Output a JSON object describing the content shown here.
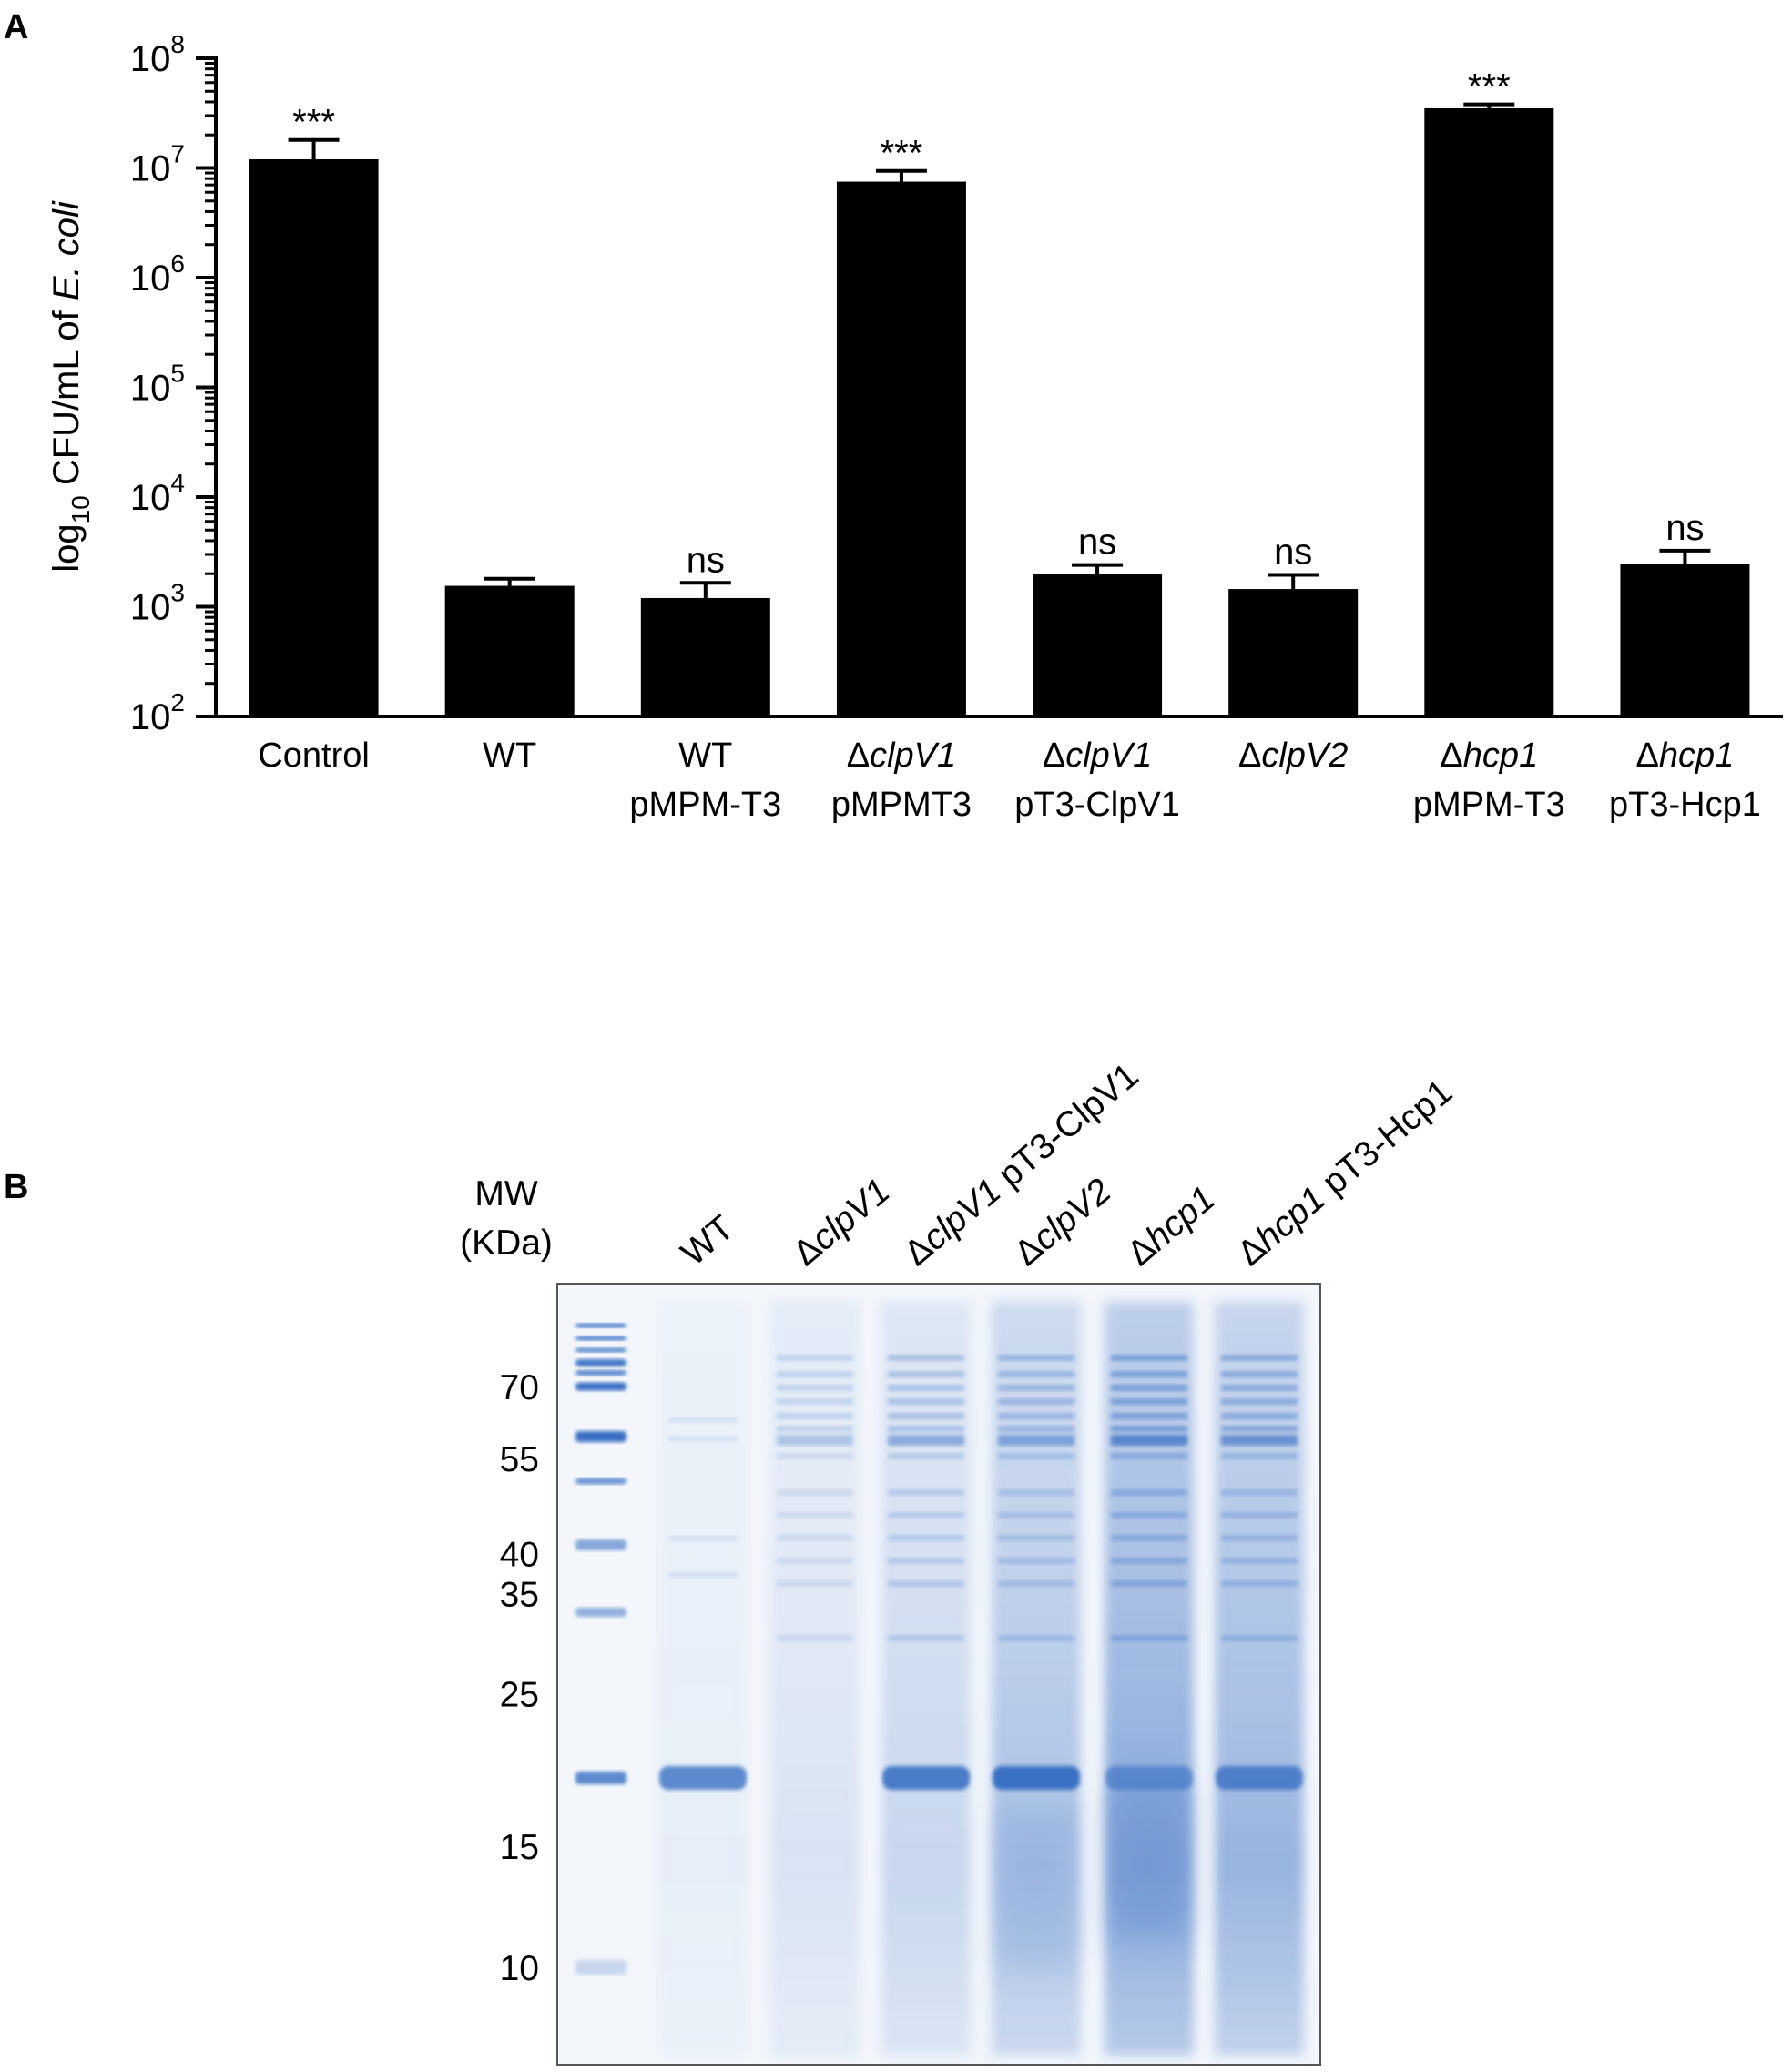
{
  "panel_a": {
    "letter": "A",
    "ylabel": {
      "prefix": "log",
      "subscript": "10",
      "main": " CFU/mL of ",
      "italic": "E. coli"
    },
    "yticks": [
      {
        "base": "10",
        "exp": "2",
        "value": 100
      },
      {
        "base": "10",
        "exp": "3",
        "value": 1000
      },
      {
        "base": "10",
        "exp": "4",
        "value": 10000
      },
      {
        "base": "10",
        "exp": "5",
        "value": 100000
      },
      {
        "base": "10",
        "exp": "6",
        "value": 1000000
      },
      {
        "base": "10",
        "exp": "7",
        "value": 10000000
      },
      {
        "base": "10",
        "exp": "8",
        "value": 100000000
      }
    ]
  },
  "chart_data": {
    "type": "bar",
    "yscale": "log",
    "ylim": [
      100,
      100000000
    ],
    "ylabel": "log10 CFU/mL of E. coli",
    "categories": [
      {
        "parts": [
          {
            "t": "Control",
            "i": false
          }
        ],
        "line2": ""
      },
      {
        "parts": [
          {
            "t": "WT",
            "i": false
          }
        ],
        "line2": ""
      },
      {
        "parts": [
          {
            "t": "WT",
            "i": false
          }
        ],
        "line2": "pMPM-T3"
      },
      {
        "parts": [
          {
            "t": "Δ",
            "i": false
          },
          {
            "t": "clpV1",
            "i": true
          }
        ],
        "line2": "pMPMT3"
      },
      {
        "parts": [
          {
            "t": "Δ",
            "i": false
          },
          {
            "t": "clpV1",
            "i": true
          }
        ],
        "line2": "pT3-ClpV1"
      },
      {
        "parts": [
          {
            "t": "Δ",
            "i": false
          },
          {
            "t": "clpV2",
            "i": true
          }
        ],
        "line2": ""
      },
      {
        "parts": [
          {
            "t": "Δ",
            "i": false
          },
          {
            "t": "hcp1",
            "i": true
          }
        ],
        "line2": "pMPM-T3"
      },
      {
        "parts": [
          {
            "t": "Δ",
            "i": false
          },
          {
            "t": "hcp1",
            "i": true
          }
        ],
        "line2": "pT3-Hcp1"
      }
    ],
    "values": [
      12000000,
      1550,
      1200,
      7500000,
      2000,
      1450,
      35000000,
      2450
    ],
    "error_upper": [
      18000000,
      1800,
      1650,
      9400000,
      2400,
      1950,
      38000000,
      3250
    ],
    "significance": [
      "***",
      "",
      "ns",
      "***",
      "ns",
      "ns",
      "***",
      "ns"
    ],
    "bar_color": "#000000"
  },
  "panel_b": {
    "letter": "B",
    "mw_header": [
      "MW",
      "(KDa)"
    ],
    "mw_markers": [
      {
        "label": "70",
        "kda": 70
      },
      {
        "label": "55",
        "kda": 55
      },
      {
        "label": "40",
        "kda": 40
      },
      {
        "label": "35",
        "kda": 35
      },
      {
        "label": "25",
        "kda": 25
      },
      {
        "label": "15",
        "kda": 15
      },
      {
        "label": "10",
        "kda": 10
      }
    ],
    "lanes": [
      {
        "parts": [
          {
            "t": "WT",
            "i": false
          }
        ]
      },
      {
        "parts": [
          {
            "t": "Δ",
            "i": false
          },
          {
            "t": "clpV1",
            "i": true
          }
        ]
      },
      {
        "parts": [
          {
            "t": "Δ",
            "i": false
          },
          {
            "t": "clpV1",
            "i": true
          },
          {
            "t": " pT3-ClpV1",
            "i": false
          }
        ]
      },
      {
        "parts": [
          {
            "t": "Δ",
            "i": false
          },
          {
            "t": "clpV2",
            "i": true
          }
        ]
      },
      {
        "parts": [
          {
            "t": "Δ",
            "i": false
          },
          {
            "t": "hcp1",
            "i": true
          }
        ]
      },
      {
        "parts": [
          {
            "t": "Δ",
            "i": false
          },
          {
            "t": "hcp1",
            "i": true
          },
          {
            "t": " pT3-Hcp1",
            "i": false
          }
        ]
      }
    ],
    "stain_color": "#2e67c0",
    "gel_background": "#f3f6fb"
  }
}
